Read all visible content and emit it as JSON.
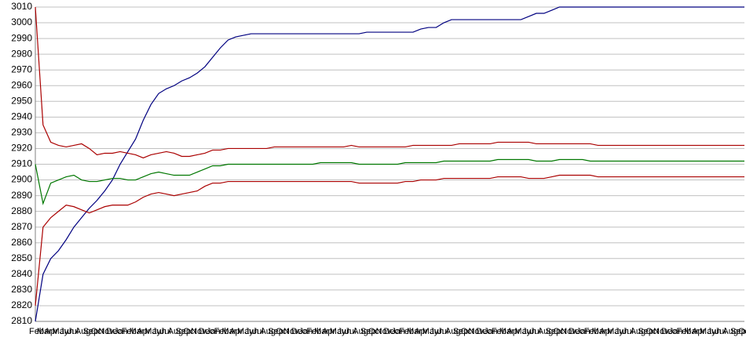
{
  "chart_data": {
    "type": "line",
    "categories": [
      "Feb",
      "Mar",
      "Apr",
      "May",
      "Jun",
      "Jul",
      "Aug",
      "Sep",
      "Oct",
      "Nov",
      "Dec",
      "Jan",
      "Feb",
      "Mar",
      "Apr",
      "May",
      "Jun",
      "Jul",
      "Aug",
      "Sep",
      "Oct",
      "Nov",
      "Dec",
      "Jan",
      "Feb",
      "Mar",
      "Apr",
      "May",
      "Jun",
      "Jul",
      "Aug",
      "Sep",
      "Oct",
      "Nov",
      "Dec",
      "Jan",
      "Feb",
      "Mar",
      "Apr",
      "May",
      "Jun",
      "Jul",
      "Aug",
      "Sep",
      "Oct",
      "Nov",
      "Dec",
      "Jan",
      "Feb",
      "Mar",
      "Apr",
      "May",
      "Jun",
      "Jul",
      "Aug",
      "Sep",
      "Oct",
      "Nov",
      "Dec",
      "Jan",
      "Feb",
      "Mar",
      "Apr",
      "May",
      "Jun",
      "Jul",
      "Aug",
      "Sep",
      "Oct",
      "Nov",
      "Dec",
      "Jan",
      "Feb",
      "Mar",
      "Apr",
      "May",
      "Jun",
      "Jul",
      "Aug",
      "Sep",
      "Oct",
      "Nov",
      "Dec",
      "Jan",
      "Feb",
      "Mar",
      "Apr",
      "May",
      "Jun",
      "Jul",
      "Aug",
      "Sep",
      "Oct"
    ],
    "series": [
      {
        "color": "#000080",
        "values": [
          2810,
          2840,
          2850,
          2855,
          2862,
          2870,
          2876,
          2882,
          2887,
          2893,
          2900,
          2910,
          2918,
          2926,
          2938,
          2948,
          2955,
          2958,
          2960,
          2963,
          2965,
          2968,
          2972,
          2978,
          2984,
          2989,
          2991,
          2992,
          2993,
          2993,
          2993,
          2993,
          2993,
          2993,
          2993,
          2993,
          2993,
          2993,
          2993,
          2993,
          2993,
          2993,
          2993,
          2994,
          2994,
          2994,
          2994,
          2994,
          2994,
          2994,
          2996,
          2997,
          2997,
          3000,
          3002,
          3002,
          3002,
          3002,
          3002,
          3002,
          3002,
          3002,
          3002,
          3002,
          3004,
          3006,
          3006,
          3008,
          3010,
          3010,
          3010,
          3010,
          3010,
          3010,
          3010,
          3010,
          3010,
          3010,
          3010,
          3010,
          3010,
          3010,
          3010,
          3010,
          3010,
          3010,
          3010,
          3010,
          3010,
          3010,
          3010,
          3010,
          3010
        ]
      },
      {
        "color": "#aa0000",
        "values": [
          3010,
          2935,
          2924,
          2922,
          2921,
          2922,
          2923,
          2920,
          2916,
          2917,
          2917,
          2918,
          2917,
          2916,
          2914,
          2916,
          2917,
          2918,
          2917,
          2915,
          2915,
          2916,
          2917,
          2919,
          2919,
          2920,
          2920,
          2920,
          2920,
          2920,
          2920,
          2921,
          2921,
          2921,
          2921,
          2921,
          2921,
          2921,
          2921,
          2921,
          2921,
          2922,
          2921,
          2921,
          2921,
          2921,
          2921,
          2921,
          2921,
          2922,
          2922,
          2922,
          2922,
          2922,
          2922,
          2923,
          2923,
          2923,
          2923,
          2923,
          2924,
          2924,
          2924,
          2924,
          2924,
          2923,
          2923,
          2923,
          2923,
          2923,
          2923,
          2923,
          2923,
          2922,
          2922,
          2922,
          2922,
          2922,
          2922,
          2922,
          2922,
          2922,
          2922,
          2922,
          2922,
          2922,
          2922,
          2922,
          2922,
          2922,
          2922,
          2922,
          2922
        ]
      },
      {
        "color": "#007700",
        "values": [
          2910,
          2885,
          2898,
          2900,
          2902,
          2903,
          2900,
          2899,
          2899,
          2900,
          2901,
          2901,
          2900,
          2900,
          2902,
          2904,
          2905,
          2904,
          2903,
          2903,
          2903,
          2905,
          2907,
          2909,
          2909,
          2910,
          2910,
          2910,
          2910,
          2910,
          2910,
          2910,
          2910,
          2910,
          2910,
          2910,
          2910,
          2911,
          2911,
          2911,
          2911,
          2911,
          2910,
          2910,
          2910,
          2910,
          2910,
          2910,
          2911,
          2911,
          2911,
          2911,
          2911,
          2912,
          2912,
          2912,
          2912,
          2912,
          2912,
          2912,
          2913,
          2913,
          2913,
          2913,
          2913,
          2912,
          2912,
          2912,
          2913,
          2913,
          2913,
          2913,
          2912,
          2912,
          2912,
          2912,
          2912,
          2912,
          2912,
          2912,
          2912,
          2912,
          2912,
          2912,
          2912,
          2912,
          2912,
          2912,
          2912,
          2912,
          2912,
          2912,
          2912
        ]
      },
      {
        "color": "#aa0000",
        "values": [
          2820,
          2870,
          2876,
          2880,
          2884,
          2883,
          2881,
          2879,
          2881,
          2883,
          2884,
          2884,
          2884,
          2886,
          2889,
          2891,
          2892,
          2891,
          2890,
          2891,
          2892,
          2893,
          2896,
          2898,
          2898,
          2899,
          2899,
          2899,
          2899,
          2899,
          2899,
          2899,
          2899,
          2899,
          2899,
          2899,
          2899,
          2899,
          2899,
          2899,
          2899,
          2899,
          2898,
          2898,
          2898,
          2898,
          2898,
          2898,
          2899,
          2899,
          2900,
          2900,
          2900,
          2901,
          2901,
          2901,
          2901,
          2901,
          2901,
          2901,
          2902,
          2902,
          2902,
          2902,
          2901,
          2901,
          2901,
          2902,
          2903,
          2903,
          2903,
          2903,
          2903,
          2902,
          2902,
          2902,
          2902,
          2902,
          2902,
          2902,
          2902,
          2902,
          2902,
          2902,
          2902,
          2902,
          2902,
          2902,
          2902,
          2902,
          2902,
          2902,
          2902
        ]
      }
    ],
    "ylim": [
      2810,
      3010
    ],
    "yticks": [
      2810,
      2820,
      2830,
      2840,
      2850,
      2860,
      2870,
      2880,
      2890,
      2900,
      2910,
      2920,
      2930,
      2940,
      2950,
      2960,
      2970,
      2980,
      2990,
      3000,
      3010
    ],
    "grid": true
  }
}
